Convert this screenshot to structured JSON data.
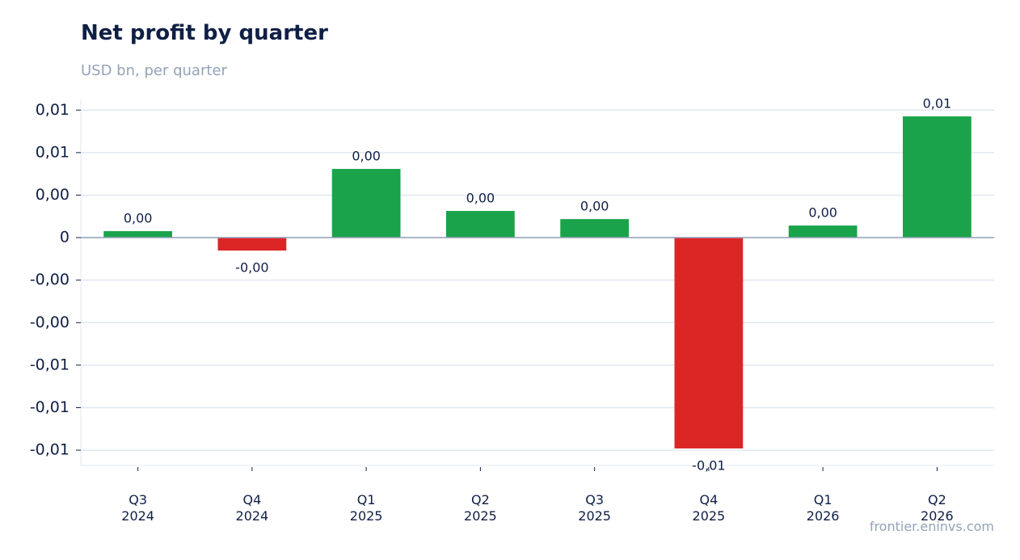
{
  "chart_data": {
    "type": "bar",
    "title": "Net profit by quarter",
    "subtitle": "USD bn, per quarter",
    "source": "frontier.eninvs.com",
    "categories": [
      "Q3 2024",
      "Q4 2024",
      "Q1 2025",
      "Q2 2025",
      "Q3 2025",
      "Q4 2025",
      "Q1 2026",
      "Q2 2026"
    ],
    "values": [
      0.00038,
      -0.00076,
      0.00404,
      0.00157,
      0.00109,
      -0.0124,
      0.00071,
      0.00713
    ],
    "value_labels": [
      "0,00",
      "-0,00",
      "0,00",
      "0,00",
      "0,00",
      "-0,01",
      "0,00",
      "0,01"
    ],
    "positive_color": "#1aa34a",
    "negative_color": "#dc2626",
    "ylim": [
      -0.0134,
      0.00813
    ],
    "yticks": [
      {
        "value": 0.0075,
        "label": "0,01"
      },
      {
        "value": 0.005,
        "label": "0,01"
      },
      {
        "value": 0.0025,
        "label": "0,00"
      },
      0,
      {
        "value": -0.0025,
        "label": "-0,00"
      },
      {
        "value": -0.005,
        "label": "-0,00"
      },
      {
        "value": -0.0075,
        "label": "-0,01"
      },
      {
        "value": -0.01,
        "label": "-0,01"
      },
      {
        "value": -0.0125,
        "label": "-0,01"
      }
    ],
    "grid": true
  }
}
